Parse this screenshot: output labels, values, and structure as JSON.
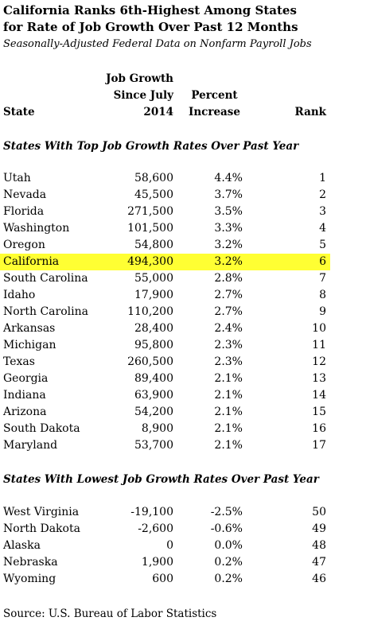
{
  "title_line1": "California Ranks 6th-Highest Among States",
  "title_line2": "for Rate of Job Growth Over Past 12 Months",
  "subtitle": "Seasonally-Adjusted Federal Data on Nonfarm Payroll Jobs",
  "headers": {
    "state": "State",
    "job_line1": "Job Growth",
    "job_line2": "Since July",
    "job_line3": "2014",
    "pct_line1": "Percent",
    "pct_line2": "Increase",
    "rank": "Rank"
  },
  "section_top": "States With Top Job Growth Rates Over Past Year",
  "section_low": "States With Lowest Job Growth Rates Over Past Year",
  "source": "Source: U.S. Bureau of Labor Statistics",
  "highlight_color": "#ffff33",
  "chart_data": {
    "type": "table",
    "columns": [
      "State",
      "Job Growth Since July 2014",
      "Percent Increase",
      "Rank"
    ],
    "top": [
      {
        "state": "Utah",
        "job": "58,600",
        "pct": "4.4%",
        "rank": "1"
      },
      {
        "state": "Nevada",
        "job": "45,500",
        "pct": "3.7%",
        "rank": "2"
      },
      {
        "state": "Florida",
        "job": "271,500",
        "pct": "3.5%",
        "rank": "3"
      },
      {
        "state": "Washington",
        "job": "101,500",
        "pct": "3.3%",
        "rank": "4"
      },
      {
        "state": "Oregon",
        "job": "54,800",
        "pct": "3.2%",
        "rank": "5"
      },
      {
        "state": "California",
        "job": "494,300",
        "pct": "3.2%",
        "rank": "6",
        "highlight": true
      },
      {
        "state": "South Carolina",
        "job": "55,000",
        "pct": "2.8%",
        "rank": "7"
      },
      {
        "state": "Idaho",
        "job": "17,900",
        "pct": "2.7%",
        "rank": "8"
      },
      {
        "state": "North Carolina",
        "job": "110,200",
        "pct": "2.7%",
        "rank": "9"
      },
      {
        "state": "Arkansas",
        "job": "28,400",
        "pct": "2.4%",
        "rank": "10"
      },
      {
        "state": "Michigan",
        "job": "95,800",
        "pct": "2.3%",
        "rank": "11"
      },
      {
        "state": "Texas",
        "job": "260,500",
        "pct": "2.3%",
        "rank": "12"
      },
      {
        "state": "Georgia",
        "job": "89,400",
        "pct": "2.1%",
        "rank": "13"
      },
      {
        "state": "Indiana",
        "job": "63,900",
        "pct": "2.1%",
        "rank": "14"
      },
      {
        "state": "Arizona",
        "job": "54,200",
        "pct": "2.1%",
        "rank": "15"
      },
      {
        "state": "South Dakota",
        "job": "8,900",
        "pct": "2.1%",
        "rank": "16"
      },
      {
        "state": "Maryland",
        "job": "53,700",
        "pct": "2.1%",
        "rank": "17"
      }
    ],
    "low": [
      {
        "state": "West Virginia",
        "job": "-19,100",
        "pct": "-2.5%",
        "rank": "50"
      },
      {
        "state": "North Dakota",
        "job": "-2,600",
        "pct": "-0.6%",
        "rank": "49"
      },
      {
        "state": "Alaska",
        "job": "0",
        "pct": "0.0%",
        "rank": "48"
      },
      {
        "state": "Nebraska",
        "job": "1,900",
        "pct": "0.2%",
        "rank": "47"
      },
      {
        "state": "Wyoming",
        "job": "600",
        "pct": "0.2%",
        "rank": "46"
      }
    ]
  }
}
